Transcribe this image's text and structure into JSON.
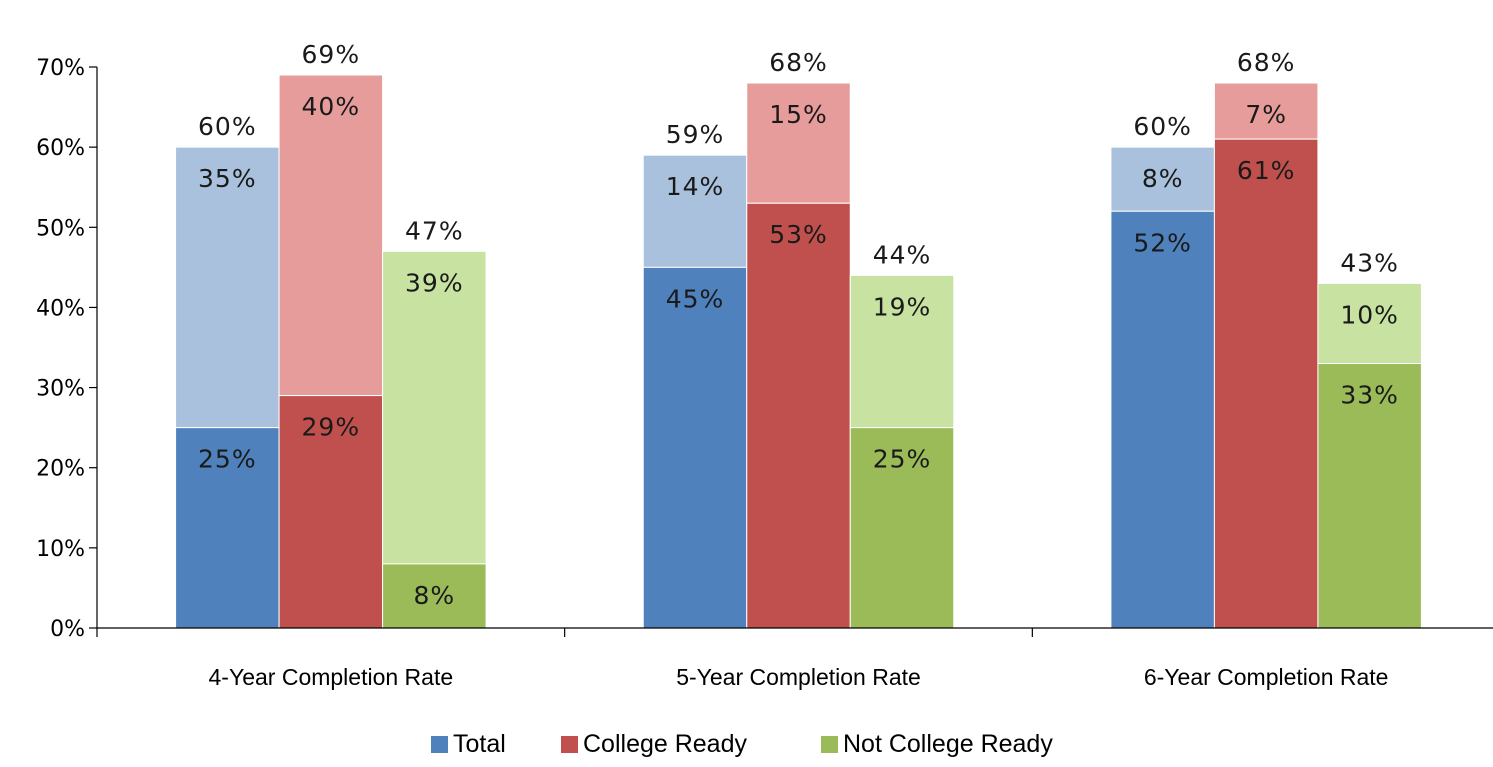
{
  "chart_data": {
    "type": "bar",
    "stacked": true,
    "categories": [
      "4-Year Completion Rate",
      "5-Year Completion Rate",
      "6-Year Completion Rate"
    ],
    "series": [
      {
        "name": "Total",
        "color": "#4F81BD",
        "light_color": "#A9C1DC",
        "base_values": [
          25,
          45,
          52
        ],
        "base_labels": [
          "25%",
          "45%",
          "52%"
        ],
        "increment_values": [
          35,
          14,
          8
        ],
        "increment_labels": [
          "35%",
          "14%",
          "8%"
        ],
        "total_labels": [
          "60%",
          "59%",
          "60%"
        ]
      },
      {
        "name": "College Ready",
        "color": "#C0504D",
        "light_color": "#E59C9A",
        "base_values": [
          29,
          53,
          61
        ],
        "base_labels": [
          "29%",
          "53%",
          "61%"
        ],
        "increment_values": [
          40,
          15,
          7
        ],
        "increment_labels": [
          "40%",
          "15%",
          "7%"
        ],
        "total_labels": [
          "69%",
          "68%",
          "68%"
        ]
      },
      {
        "name": "Not College Ready",
        "color": "#9BBB59",
        "light_color": "#C8E3A1",
        "base_values": [
          8,
          25,
          33
        ],
        "base_labels": [
          "8%",
          "25%",
          "33%"
        ],
        "increment_values": [
          39,
          19,
          10
        ],
        "increment_labels": [
          "39%",
          "19%",
          "10%"
        ],
        "total_labels": [
          "47%",
          "44%",
          "43%"
        ]
      }
    ],
    "y_ticks": [
      "0%",
      "10%",
      "20%",
      "30%",
      "40%",
      "50%",
      "60%",
      "70%"
    ],
    "ylim": [
      0,
      70
    ],
    "grid": false,
    "legend_position": "bottom"
  }
}
